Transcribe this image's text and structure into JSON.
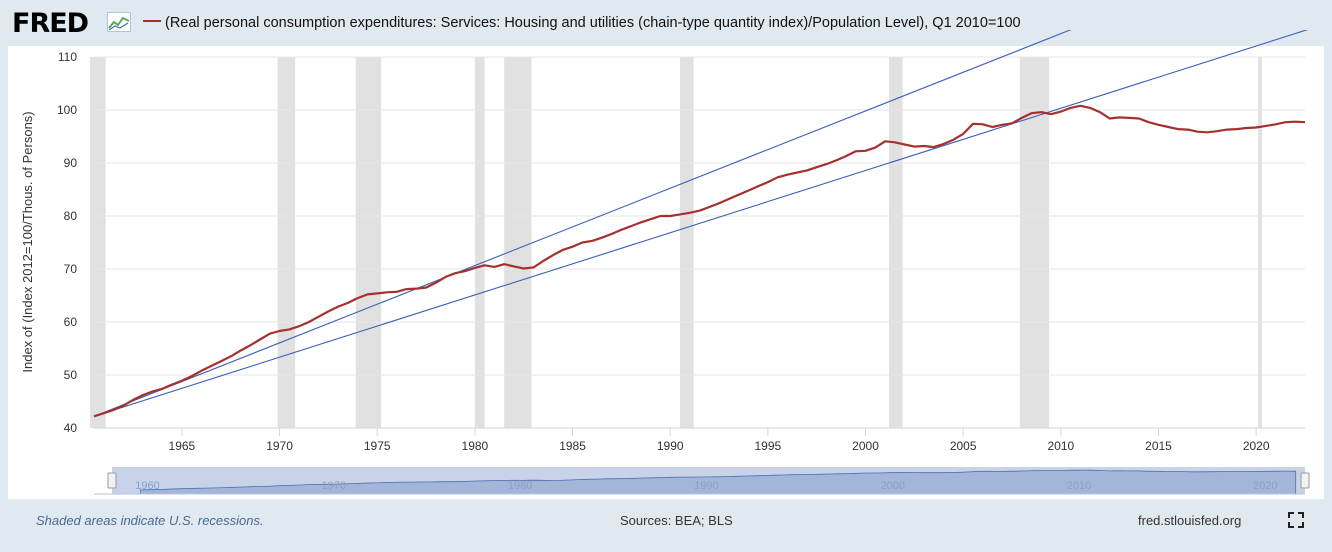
{
  "header": {
    "logo": "FRED",
    "legend": "(Real personal consumption expenditures: Services: Housing and utilities (chain-type quantity index)/Population Level), Q1 2010=100"
  },
  "footer": {
    "recession_note": "Shaded areas indicate U.S. recessions.",
    "sources": "Sources: BEA; BLS",
    "site": "fred.stlouisfed.org"
  },
  "icons": [
    "fred-chart-icon",
    "fullscreen-icon",
    "navigator-handle-icon"
  ],
  "colors": {
    "series": "#a5312f",
    "trendline": "#3a5fb8",
    "recession": "#e1e1e1",
    "navigator_fill": "#9fb1d6"
  },
  "chart_data": {
    "type": "line",
    "title": "",
    "xlabel": "",
    "ylabel": "Index of (Index 2012=100/Thous. of Persons)",
    "xlim": [
      1960.5,
      2022.5
    ],
    "ylim": [
      40,
      110
    ],
    "yticks": [
      40,
      50,
      60,
      70,
      80,
      90,
      100,
      110
    ],
    "xticks": [
      1965,
      1970,
      1975,
      1980,
      1985,
      1990,
      1995,
      2000,
      2005,
      2010,
      2015,
      2020
    ],
    "navigator_ticks": [
      "1960",
      "1970",
      "1980",
      "1990",
      "2000",
      "2010",
      "2020"
    ],
    "grid": true,
    "recessions": [
      [
        1960.3,
        1961.1
      ],
      [
        1969.9,
        1970.8
      ],
      [
        1973.9,
        1975.2
      ],
      [
        1980.0,
        1980.5
      ],
      [
        1981.5,
        1982.9
      ],
      [
        1990.5,
        1991.2
      ],
      [
        2001.2,
        2001.9
      ],
      [
        2007.9,
        2009.4
      ],
      [
        2020.1,
        2020.3
      ]
    ],
    "series": [
      {
        "values": [
          [
            1960.5,
            42.2
          ],
          [
            1961.0,
            42.8
          ],
          [
            1961.5,
            43.4
          ],
          [
            1962.0,
            44.2
          ],
          [
            1962.5,
            45.3
          ],
          [
            1963.0,
            46.2
          ],
          [
            1963.5,
            46.9
          ],
          [
            1964.0,
            47.4
          ],
          [
            1964.5,
            48.2
          ],
          [
            1965.0,
            48.9
          ],
          [
            1965.5,
            49.8
          ],
          [
            1966.0,
            50.8
          ],
          [
            1966.5,
            51.7
          ],
          [
            1967.0,
            52.6
          ],
          [
            1967.5,
            53.5
          ],
          [
            1968.0,
            54.6
          ],
          [
            1968.5,
            55.6
          ],
          [
            1969.0,
            56.7
          ],
          [
            1969.5,
            57.8
          ],
          [
            1970.0,
            58.3
          ],
          [
            1970.5,
            58.6
          ],
          [
            1971.0,
            59.2
          ],
          [
            1971.5,
            60.0
          ],
          [
            1972.0,
            61.0
          ],
          [
            1972.5,
            62.0
          ],
          [
            1973.0,
            62.9
          ],
          [
            1973.5,
            63.6
          ],
          [
            1974.0,
            64.5
          ],
          [
            1974.5,
            65.2
          ],
          [
            1975.0,
            65.4
          ],
          [
            1975.5,
            65.6
          ],
          [
            1976.0,
            65.7
          ],
          [
            1976.5,
            66.2
          ],
          [
            1977.0,
            66.3
          ],
          [
            1977.5,
            66.5
          ],
          [
            1978.0,
            67.4
          ],
          [
            1978.5,
            68.5
          ],
          [
            1979.0,
            69.2
          ],
          [
            1979.5,
            69.6
          ],
          [
            1980.0,
            70.2
          ],
          [
            1980.5,
            70.7
          ],
          [
            1981.0,
            70.4
          ],
          [
            1981.5,
            70.9
          ],
          [
            1982.0,
            70.5
          ],
          [
            1982.5,
            70.1
          ],
          [
            1983.0,
            70.3
          ],
          [
            1983.5,
            71.5
          ],
          [
            1984.0,
            72.6
          ],
          [
            1984.5,
            73.6
          ],
          [
            1985.0,
            74.2
          ],
          [
            1985.5,
            75.0
          ],
          [
            1986.0,
            75.3
          ],
          [
            1986.5,
            75.9
          ],
          [
            1987.0,
            76.6
          ],
          [
            1987.5,
            77.4
          ],
          [
            1988.0,
            78.1
          ],
          [
            1988.5,
            78.8
          ],
          [
            1989.0,
            79.4
          ],
          [
            1989.5,
            80.0
          ],
          [
            1990.0,
            80.0
          ],
          [
            1990.5,
            80.3
          ],
          [
            1991.0,
            80.6
          ],
          [
            1991.5,
            81.0
          ],
          [
            1992.0,
            81.7
          ],
          [
            1992.5,
            82.4
          ],
          [
            1993.0,
            83.2
          ],
          [
            1993.5,
            84.0
          ],
          [
            1994.0,
            84.8
          ],
          [
            1994.5,
            85.6
          ],
          [
            1995.0,
            86.4
          ],
          [
            1995.5,
            87.3
          ],
          [
            1996.0,
            87.8
          ],
          [
            1996.5,
            88.2
          ],
          [
            1997.0,
            88.6
          ],
          [
            1997.5,
            89.2
          ],
          [
            1998.0,
            89.8
          ],
          [
            1998.5,
            90.5
          ],
          [
            1999.0,
            91.3
          ],
          [
            1999.5,
            92.2
          ],
          [
            2000.0,
            92.3
          ],
          [
            2000.5,
            92.9
          ],
          [
            2001.0,
            94.1
          ],
          [
            2001.5,
            93.9
          ],
          [
            2002.0,
            93.5
          ],
          [
            2002.5,
            93.1
          ],
          [
            2003.0,
            93.2
          ],
          [
            2003.5,
            93.0
          ],
          [
            2004.0,
            93.6
          ],
          [
            2004.5,
            94.4
          ],
          [
            2005.0,
            95.5
          ],
          [
            2005.5,
            97.4
          ],
          [
            2006.0,
            97.3
          ],
          [
            2006.5,
            96.8
          ],
          [
            2007.0,
            97.2
          ],
          [
            2007.5,
            97.5
          ],
          [
            2008.0,
            98.5
          ],
          [
            2008.5,
            99.4
          ],
          [
            2009.0,
            99.6
          ],
          [
            2009.5,
            99.2
          ],
          [
            2010.0,
            99.7
          ],
          [
            2010.5,
            100.4
          ],
          [
            2011.0,
            100.8
          ],
          [
            2011.5,
            100.4
          ],
          [
            2012.0,
            99.6
          ],
          [
            2012.5,
            98.4
          ],
          [
            2013.0,
            98.6
          ],
          [
            2013.5,
            98.5
          ],
          [
            2014.0,
            98.4
          ],
          [
            2014.5,
            97.7
          ],
          [
            2015.0,
            97.2
          ],
          [
            2015.5,
            96.8
          ],
          [
            2016.0,
            96.4
          ],
          [
            2016.5,
            96.3
          ],
          [
            2017.0,
            95.9
          ],
          [
            2017.5,
            95.8
          ],
          [
            2018.0,
            96.0
          ],
          [
            2018.5,
            96.3
          ],
          [
            2019.0,
            96.4
          ],
          [
            2019.5,
            96.6
          ],
          [
            2020.0,
            96.7
          ],
          [
            2020.5,
            97.0
          ],
          [
            2021.0,
            97.3
          ],
          [
            2021.5,
            97.7
          ],
          [
            2022.0,
            97.8
          ],
          [
            2022.5,
            97.7
          ]
        ]
      }
    ],
    "trendlines": [
      {
        "x": [
          1960.5,
          2011.5
        ],
        "y": [
          42.2,
          116.6
        ]
      },
      {
        "x": [
          1960.5,
          2023.0
        ],
        "y": [
          42.2,
          115.6
        ]
      }
    ]
  }
}
